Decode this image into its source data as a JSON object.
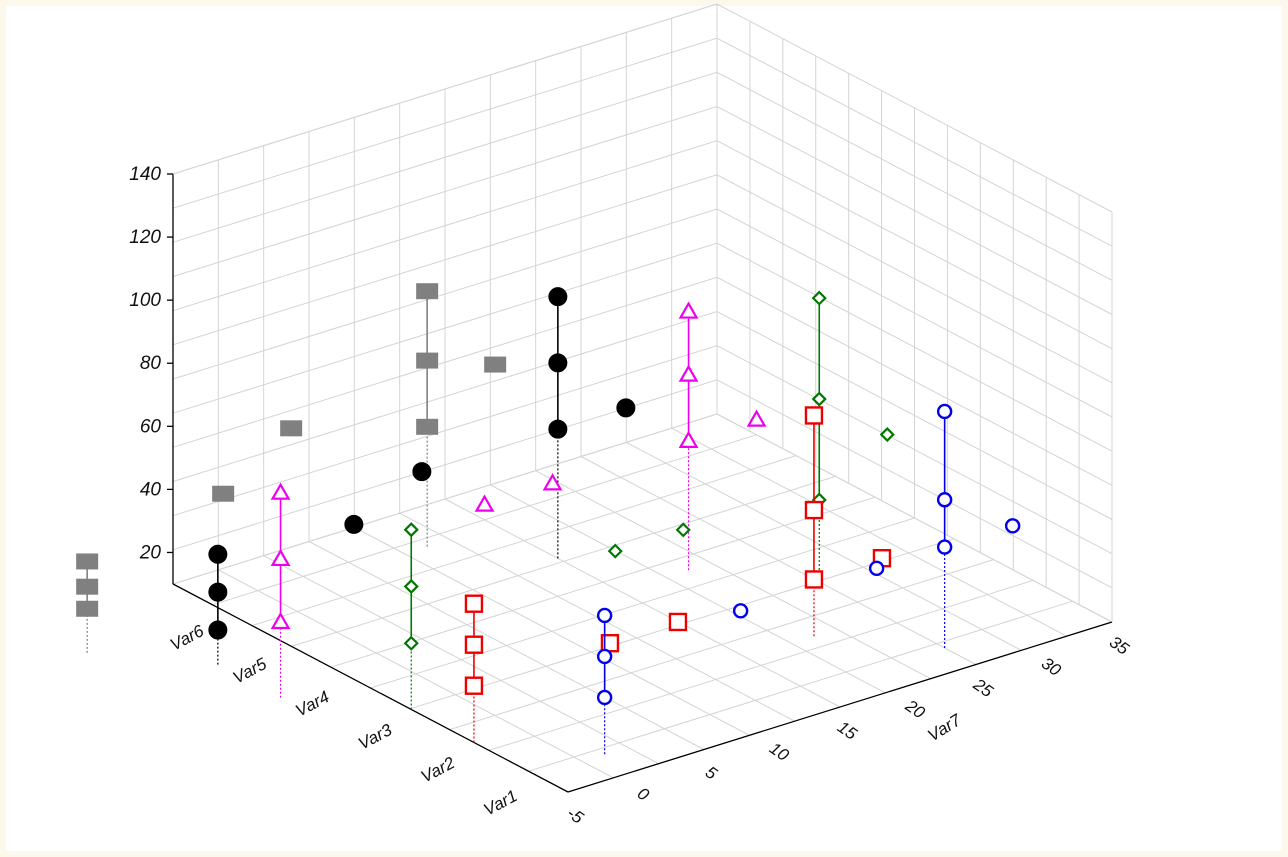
{
  "chart_data": {
    "type": "scatter3d",
    "title": "",
    "z_ticks": [
      "20",
      "40",
      "60",
      "80",
      "100",
      "120",
      "140"
    ],
    "z_range": [
      10,
      140
    ],
    "category_axis": [
      "Var1",
      "Var2",
      "Var3",
      "Var4",
      "Var5",
      "Var6"
    ],
    "x_axis_label": "Var7",
    "x_ticks": [
      "-5",
      "0",
      "5",
      "10",
      "15",
      "20",
      "25",
      "30",
      "35"
    ],
    "x_range": [
      -5,
      35
    ],
    "grid": true,
    "series": [
      {
        "category": "Var1",
        "color": "#0000ee",
        "marker": "circle-open",
        "points": [
          {
            "x": 0,
            "z": [
              28,
              41,
              54
            ]
          },
          {
            "x": 25,
            "z": [
              42,
              57,
              85
            ]
          },
          {
            "x": 10,
            "z": [
              42
            ]
          },
          {
            "x": 20,
            "z": [
              42
            ]
          },
          {
            "x": 30,
            "z": [
              42
            ]
          }
        ]
      },
      {
        "category": "Var2",
        "color": "#ee0000",
        "marker": "square-open",
        "points": [
          {
            "x": -5,
            "z": [
              28,
              41,
              54
            ]
          },
          {
            "x": 20,
            "z": [
              28,
              50,
              80
            ]
          },
          {
            "x": 5,
            "z": [
              28
            ]
          },
          {
            "x": 10,
            "z": [
              28
            ]
          },
          {
            "x": 25,
            "z": [
              28
            ]
          }
        ]
      },
      {
        "category": "Var3",
        "color": "#007700",
        "marker": "diamond-open",
        "points": [
          {
            "x": -5,
            "z": [
              31,
              49,
              67
            ]
          },
          {
            "x": 25,
            "z": [
              36,
              68,
              100
            ]
          },
          {
            "x": 10,
            "z": [
              40
            ]
          },
          {
            "x": 15,
            "z": [
              40
            ]
          },
          {
            "x": 30,
            "z": [
              50
            ]
          }
        ]
      },
      {
        "category": "Var4",
        "color": "#ee00ee",
        "marker": "triangle-open",
        "points": [
          {
            "x": -10,
            "z": [
              34,
              54,
              75
            ]
          },
          {
            "x": 20,
            "z": [
              51,
              72,
              92
            ]
          },
          {
            "x": 5,
            "z": [
              51
            ]
          },
          {
            "x": 10,
            "z": [
              51
            ]
          },
          {
            "x": 25,
            "z": [
              51
            ]
          }
        ]
      },
      {
        "category": "Var5",
        "color": "#000000",
        "marker": "circle-filled",
        "points": [
          {
            "x": -10,
            "z": [
              21,
              33,
              45
            ]
          },
          {
            "x": 15,
            "z": [
              51,
              72,
              93
            ]
          },
          {
            "x": 0,
            "z": [
              41
            ]
          },
          {
            "x": 5,
            "z": [
              51
            ]
          },
          {
            "x": 20,
            "z": [
              51
            ]
          }
        ]
      },
      {
        "category": "Var6",
        "color": "#808080",
        "marker": "square-filled",
        "points": [
          {
            "x": -15,
            "z": [
              24,
              31,
              39
            ]
          },
          {
            "x": 10,
            "z": [
              48,
              69,
              91
            ]
          },
          {
            "x": -5,
            "z": [
              47
            ]
          },
          {
            "x": 0,
            "z": [
              61
            ]
          },
          {
            "x": 15,
            "z": [
              61
            ]
          }
        ]
      }
    ]
  }
}
